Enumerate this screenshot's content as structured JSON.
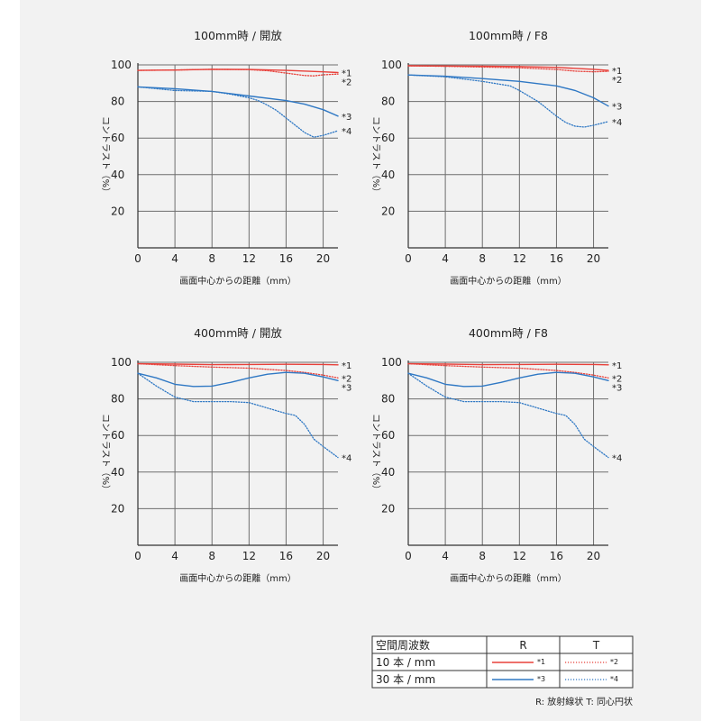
{
  "colors": {
    "background": "#f2f2f2",
    "grid": "#6e6e6e",
    "axis": "#333333",
    "red": "#e8403a",
    "blue": "#2f78c4"
  },
  "chart_data": [
    {
      "type": "line",
      "title": "100mm時 / 開放",
      "xlabel": "画面中心からの距離（mm）",
      "ylabel": "コントラスト（%）",
      "xlim": [
        0,
        21.6
      ],
      "ylim": [
        0,
        100
      ],
      "x_ticks": [
        "0",
        "4",
        "8",
        "12",
        "16",
        "20"
      ],
      "y_ticks": [
        "20",
        "40",
        "60",
        "80",
        "100"
      ],
      "grid": true,
      "series": [
        {
          "name": "*1",
          "style": "solid",
          "color": "red",
          "x": [
            0,
            4,
            8,
            12,
            16,
            20,
            21.6
          ],
          "y": [
            97,
            97.2,
            97.6,
            97.5,
            97,
            96.2,
            95.8
          ]
        },
        {
          "name": "*2",
          "style": "dotted",
          "color": "red",
          "x": [
            0,
            4,
            8,
            12,
            14,
            16,
            18,
            19,
            20,
            21.6
          ],
          "y": [
            97,
            97.2,
            97.6,
            97.4,
            96.8,
            95.5,
            94.2,
            94,
            94.6,
            95
          ]
        },
        {
          "name": "*3",
          "style": "solid",
          "color": "blue",
          "x": [
            0,
            4,
            8,
            12,
            16,
            18,
            20,
            21.6
          ],
          "y": [
            88,
            87,
            85.5,
            83,
            80.5,
            78.5,
            75.5,
            72
          ]
        },
        {
          "name": "*4",
          "style": "dotted",
          "color": "blue",
          "x": [
            0,
            4,
            8,
            10,
            12,
            13,
            14,
            15,
            16,
            17,
            18,
            19,
            20,
            21.6
          ],
          "y": [
            88,
            86,
            85.5,
            84,
            82,
            80.5,
            78,
            75,
            71,
            67,
            63,
            60.5,
            61.5,
            64
          ]
        }
      ]
    },
    {
      "type": "line",
      "title": "100mm時 / F8",
      "xlabel": "画面中心からの距離（mm）",
      "ylabel": "コントラスト（%）",
      "xlim": [
        0,
        21.6
      ],
      "ylim": [
        0,
        100
      ],
      "x_ticks": [
        "0",
        "4",
        "8",
        "12",
        "16",
        "20"
      ],
      "y_ticks": [
        "20",
        "40",
        "60",
        "80",
        "100"
      ],
      "grid": true,
      "series": [
        {
          "name": "*1",
          "style": "solid",
          "color": "red",
          "x": [
            0,
            4,
            8,
            12,
            16,
            20,
            21.6
          ],
          "y": [
            99.5,
            99.4,
            99.3,
            99.1,
            98.6,
            97.6,
            97
          ]
        },
        {
          "name": "*2",
          "style": "dotted",
          "color": "red",
          "x": [
            0,
            4,
            8,
            12,
            16,
            18,
            20,
            21.6
          ],
          "y": [
            99.5,
            99.2,
            98.8,
            98.4,
            97.5,
            96.6,
            96.2,
            96.5
          ]
        },
        {
          "name": "*3",
          "style": "solid",
          "color": "blue",
          "x": [
            0,
            4,
            8,
            12,
            16,
            18,
            20,
            21.6
          ],
          "y": [
            94.5,
            93.8,
            92.5,
            91,
            88.5,
            86,
            82,
            77.5
          ]
        },
        {
          "name": "*4",
          "style": "dotted",
          "color": "blue",
          "x": [
            0,
            4,
            8,
            11,
            12,
            13,
            14,
            15,
            16,
            17,
            18,
            19,
            20,
            21.6
          ],
          "y": [
            94.5,
            93.5,
            91,
            88.5,
            86,
            83,
            80,
            76,
            72,
            68.5,
            66.5,
            66,
            67,
            69
          ]
        }
      ]
    },
    {
      "type": "line",
      "title": "400mm時 / 開放",
      "xlabel": "画面中心からの距離（mm）",
      "ylabel": "コントラスト（%）",
      "xlim": [
        0,
        21.6
      ],
      "ylim": [
        0,
        100
      ],
      "x_ticks": [
        "0",
        "4",
        "8",
        "12",
        "16",
        "20"
      ],
      "y_ticks": [
        "20",
        "40",
        "60",
        "80",
        "100"
      ],
      "grid": true,
      "series": [
        {
          "name": "*1",
          "style": "solid",
          "color": "red",
          "x": [
            0,
            4,
            8,
            12,
            16,
            20,
            21.6
          ],
          "y": [
            99.2,
            99,
            98.7,
            98.8,
            98.9,
            98.8,
            98.6
          ]
        },
        {
          "name": "*2",
          "style": "dotted",
          "color": "red",
          "x": [
            0,
            4,
            8,
            12,
            16,
            18,
            20,
            21.6
          ],
          "y": [
            99.2,
            98.2,
            97.4,
            96.8,
            95.5,
            94.5,
            93,
            91.5
          ]
        },
        {
          "name": "*3",
          "style": "solid",
          "color": "blue",
          "x": [
            0,
            2,
            4,
            6,
            8,
            10,
            12,
            14,
            16,
            18,
            20,
            21.6
          ],
          "y": [
            94,
            91.5,
            88,
            86.8,
            87,
            89,
            91.5,
            93.5,
            94.5,
            94,
            92,
            90
          ]
        },
        {
          "name": "*4",
          "style": "dotted",
          "color": "blue",
          "x": [
            0,
            2,
            4,
            6,
            8,
            10,
            12,
            14,
            16,
            17,
            18,
            19,
            20,
            21.6
          ],
          "y": [
            94,
            87,
            81,
            78.5,
            78.5,
            78.5,
            78,
            75,
            72,
            71,
            66,
            58,
            54,
            48
          ]
        }
      ]
    },
    {
      "type": "line",
      "title": "400mm時 / F8",
      "xlabel": "画面中心からの距離（mm）",
      "ylabel": "コントラスト（%）",
      "xlim": [
        0,
        21.6
      ],
      "ylim": [
        0,
        100
      ],
      "x_ticks": [
        "0",
        "4",
        "8",
        "12",
        "16",
        "20"
      ],
      "y_ticks": [
        "20",
        "40",
        "60",
        "80",
        "100"
      ],
      "grid": true,
      "series": [
        {
          "name": "*1",
          "style": "solid",
          "color": "red",
          "x": [
            0,
            4,
            8,
            12,
            16,
            20,
            21.6
          ],
          "y": [
            99.2,
            99,
            98.7,
            98.8,
            98.9,
            98.8,
            98.6
          ]
        },
        {
          "name": "*2",
          "style": "dotted",
          "color": "red",
          "x": [
            0,
            4,
            8,
            12,
            16,
            18,
            20,
            21.6
          ],
          "y": [
            99.2,
            98.2,
            97.4,
            96.8,
            95.5,
            94.5,
            93,
            91.5
          ]
        },
        {
          "name": "*3",
          "style": "solid",
          "color": "blue",
          "x": [
            0,
            2,
            4,
            6,
            8,
            10,
            12,
            14,
            16,
            18,
            20,
            21.6
          ],
          "y": [
            94,
            91.5,
            88,
            86.8,
            87,
            89,
            91.5,
            93.5,
            94.5,
            94,
            92,
            90
          ]
        },
        {
          "name": "*4",
          "style": "dotted",
          "color": "blue",
          "x": [
            0,
            2,
            4,
            6,
            8,
            10,
            12,
            14,
            16,
            17,
            18,
            19,
            20,
            21.6
          ],
          "y": [
            94,
            87,
            81,
            78.5,
            78.5,
            78.5,
            78,
            75,
            72,
            71,
            66,
            58,
            54,
            48
          ]
        }
      ]
    }
  ],
  "legend": {
    "header": "空間周波数",
    "col_r": "R",
    "col_t": "T",
    "rows": [
      {
        "label": "10 本 / mm",
        "r_mark": "*1",
        "t_mark": "*2",
        "color": "red"
      },
      {
        "label": "30 本 / mm",
        "r_mark": "*3",
        "t_mark": "*4",
        "color": "blue"
      }
    ],
    "footnote": "R: 放射線状  T: 同心円状"
  }
}
